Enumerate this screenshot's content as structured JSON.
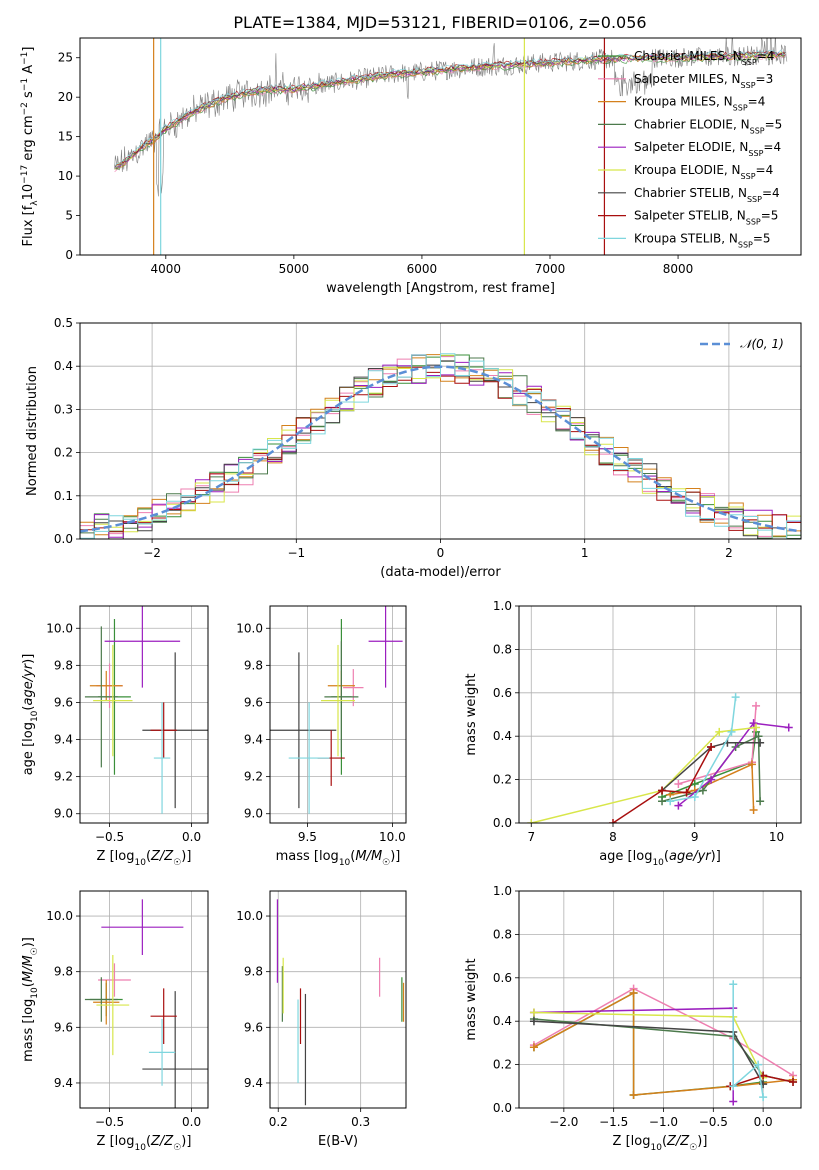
{
  "title": "PLATE=1384, MJD=53121, FIBERID=0106, z=0.056",
  "colors": {
    "Chabrier MILES": "#3a8f3a",
    "Salpeter MILES": "#ee7fb0",
    "Kroupa MILES": "#d4801c",
    "Chabrier ELODIE": "#4c7a4c",
    "Salpeter ELODIE": "#9b1fbf",
    "Kroupa ELODIE": "#d8e64a",
    "Chabrier STELIB": "#444444",
    "Salpeter STELIB": "#a80f0f",
    "Kroupa STELIB": "#7fd6de",
    "data": "#808080",
    "gaussian": "#5b8fd6"
  },
  "legend": {
    "models": [
      {
        "pre": "Chabrier MILES, N",
        "sub": "SSP",
        "post": "=4"
      },
      {
        "pre": "Salpeter MILES, N",
        "sub": "SSP",
        "post": "=3"
      },
      {
        "pre": "Kroupa MILES, N",
        "sub": "SSP",
        "post": "=4"
      },
      {
        "pre": "Chabrier ELODIE, N",
        "sub": "SSP",
        "post": "=5"
      },
      {
        "pre": "Salpeter ELODIE, N",
        "sub": "SSP",
        "post": "=4"
      },
      {
        "pre": "Kroupa ELODIE, N",
        "sub": "SSP",
        "post": "=4"
      },
      {
        "pre": "Chabrier STELIB, N",
        "sub": "SSP",
        "post": "=4"
      },
      {
        "pre": "Salpeter STELIB, N",
        "sub": "SSP",
        "post": "=5"
      },
      {
        "pre": "Kroupa STELIB, N",
        "sub": "SSP",
        "post": "=5"
      }
    ],
    "gaussian": "𝒩(0, 1)"
  },
  "chart_data": [
    {
      "id": "spectrum",
      "type": "line",
      "xlabel": "wavelength [Angstrom, rest frame]",
      "ylabel": {
        "pre": "Flux [f",
        "sub": "λ",
        "mid": "10",
        "sup1": "−17",
        "post": " erg cm",
        "sup2": "−2",
        "post2": " s",
        "sup3": "−1",
        "post3": " A",
        "sup4": "−1",
        "end": "]"
      },
      "xlim": [
        3330,
        8960
      ],
      "ylim": [
        0,
        27.5
      ],
      "xticks": [
        4000,
        5000,
        6000,
        7000,
        8000
      ],
      "yticks": [
        0,
        5,
        10,
        15,
        20,
        25
      ],
      "grid": false,
      "legend_position": "right",
      "continuum": {
        "x": [
          3600,
          3700,
          3800,
          3900,
          4000,
          4200,
          4400,
          4600,
          4800,
          5000,
          5200,
          5400,
          5600,
          5800,
          6000,
          6200,
          6400,
          6600,
          6800,
          7000,
          7200,
          7400,
          7600,
          7800,
          8000,
          8200,
          8400,
          8600,
          8800
        ],
        "y": [
          11.0,
          12.0,
          13.5,
          14.5,
          16.0,
          18.0,
          19.5,
          20.5,
          21.0,
          21.0,
          21.5,
          22.0,
          22.5,
          23.0,
          23.2,
          23.5,
          23.8,
          24.0,
          24.2,
          24.4,
          24.6,
          24.8,
          24.9,
          25.0,
          25.0,
          25.1,
          25.2,
          25.3,
          25.4
        ]
      },
      "vertical_lines": [
        {
          "series": "Kroupa MILES",
          "x": 3905
        },
        {
          "series": "Kroupa STELIB",
          "x": 3960
        },
        {
          "series": "Kroupa ELODIE",
          "x": 6800
        },
        {
          "series": "Salpeter STELIB",
          "x": 7425
        }
      ]
    },
    {
      "id": "residual-histogram",
      "type": "bar",
      "xlabel": "(data-model)/error",
      "ylabel": "Normed distribution",
      "xlim": [
        -2.5,
        2.5
      ],
      "ylim": [
        0,
        0.5
      ],
      "xticks": [
        -2,
        -1,
        0,
        1,
        2
      ],
      "yticks": [
        0.0,
        0.1,
        0.2,
        0.3,
        0.4,
        0.5
      ],
      "grid": true,
      "legend_position": "upper right",
      "bin_width": 0.1
    },
    {
      "id": "age-vs-metallicity",
      "type": "scatter",
      "xlabel": "Z [log10(Z/Z☉)]",
      "ylabel": "age  [log10(age/yr)]",
      "xlim": [
        -0.68,
        0.1
      ],
      "ylim": [
        8.95,
        10.12
      ],
      "xticks": [
        -0.5,
        0.0
      ],
      "yticks": [
        9.0,
        9.2,
        9.4,
        9.6,
        9.8,
        10.0
      ],
      "grid": true,
      "points": [
        {
          "series": "Chabrier MILES",
          "x": -0.47,
          "y": 9.63,
          "xerr": 0.1,
          "yerr": 0.42
        },
        {
          "series": "Salpeter MILES",
          "x": -0.5,
          "y": 9.69,
          "xerr": 0.08,
          "yerr": 0.12
        },
        {
          "series": "Kroupa MILES",
          "x": -0.52,
          "y": 9.69,
          "xerr": 0.1,
          "yerr": 0.08
        },
        {
          "series": "Chabrier ELODIE",
          "x": -0.55,
          "y": 9.63,
          "xerr": 0.1,
          "yerr": 0.38
        },
        {
          "series": "Salpeter ELODIE",
          "x": -0.3,
          "y": 9.93,
          "xerr": 0.23,
          "yerr": 0.25
        },
        {
          "series": "Kroupa ELODIE",
          "x": -0.48,
          "y": 9.61,
          "xerr": 0.12,
          "yerr": 0.3
        },
        {
          "series": "Chabrier STELIB",
          "x": -0.1,
          "y": 9.45,
          "xerr": 0.2,
          "yerr": 0.42
        },
        {
          "series": "Salpeter STELIB",
          "x": -0.17,
          "y": 9.45,
          "xerr": 0.08,
          "yerr": 0.15
        },
        {
          "series": "Kroupa STELIB",
          "x": -0.18,
          "y": 9.3,
          "xerr": 0.05,
          "yerr": 0.3
        }
      ]
    },
    {
      "id": "age-vs-mass",
      "type": "scatter",
      "xlabel": "mass [log10(M/M☉)]",
      "ylabel": "",
      "xlim": [
        9.28,
        10.08
      ],
      "ylim": [
        8.95,
        10.12
      ],
      "xticks": [
        9.5,
        10.0
      ],
      "yticks": [
        9.0,
        9.2,
        9.4,
        9.6,
        9.8,
        10.0
      ],
      "grid": true,
      "points": [
        {
          "series": "Chabrier MILES",
          "x": 9.7,
          "y": 9.63,
          "xerr": 0.06,
          "yerr": 0.42
        },
        {
          "series": "Salpeter MILES",
          "x": 9.77,
          "y": 9.68,
          "xerr": 0.06,
          "yerr": 0.1
        },
        {
          "series": "Kroupa MILES",
          "x": 9.7,
          "y": 9.69,
          "xerr": 0.08,
          "yerr": 0.08
        },
        {
          "series": "Chabrier ELODIE",
          "x": 9.7,
          "y": 9.63,
          "xerr": 0.1,
          "yerr": 0.3
        },
        {
          "series": "Salpeter ELODIE",
          "x": 9.96,
          "y": 9.93,
          "xerr": 0.1,
          "yerr": 0.25
        },
        {
          "series": "Kroupa ELODIE",
          "x": 9.68,
          "y": 9.61,
          "xerr": 0.1,
          "yerr": 0.3
        },
        {
          "series": "Chabrier STELIB",
          "x": 9.45,
          "y": 9.45,
          "xerr": 0.22,
          "yerr": 0.42
        },
        {
          "series": "Salpeter STELIB",
          "x": 9.64,
          "y": 9.3,
          "xerr": 0.08,
          "yerr": 0.15
        },
        {
          "series": "Kroupa STELIB",
          "x": 9.51,
          "y": 9.3,
          "xerr": 0.12,
          "yerr": 0.3
        }
      ]
    },
    {
      "id": "mass-weight-vs-age",
      "type": "line",
      "xlabel": "age  [log10(age/yr)]",
      "ylabel": "mass weight",
      "xlim": [
        6.85,
        10.3
      ],
      "ylim": [
        0,
        1
      ],
      "xticks": [
        7,
        8,
        9,
        10
      ],
      "yticks": [
        0.0,
        0.2,
        0.4,
        0.6,
        0.8,
        1.0
      ],
      "grid": true,
      "series": [
        {
          "name": "Chabrier MILES",
          "x": [
            8.6,
            9.0,
            9.7,
            9.75
          ],
          "y": [
            0.12,
            0.18,
            0.28,
            0.42
          ]
        },
        {
          "name": "Salpeter MILES",
          "x": [
            8.8,
            9.7,
            9.75
          ],
          "y": [
            0.18,
            0.28,
            0.54
          ]
        },
        {
          "name": "Kroupa MILES",
          "x": [
            8.7,
            9.0,
            9.7,
            9.72
          ],
          "y": [
            0.13,
            0.15,
            0.27,
            0.06
          ]
        },
        {
          "name": "Chabrier ELODIE",
          "x": [
            8.6,
            9.1,
            9.5,
            9.78,
            9.8
          ],
          "y": [
            0.1,
            0.15,
            0.35,
            0.4,
            0.1
          ]
        },
        {
          "name": "Salpeter ELODIE",
          "x": [
            8.8,
            9.2,
            9.72,
            10.15
          ],
          "y": [
            0.08,
            0.2,
            0.46,
            0.44
          ]
        },
        {
          "name": "Kroupa ELODIE",
          "x": [
            7.0,
            8.6,
            9.3,
            9.75
          ],
          "y": [
            0.0,
            0.15,
            0.42,
            0.44
          ]
        },
        {
          "name": "Chabrier STELIB",
          "x": [
            8.6,
            9.2,
            9.4,
            9.8
          ],
          "y": [
            0.15,
            0.35,
            0.37,
            0.37
          ]
        },
        {
          "name": "Salpeter STELIB",
          "x": [
            8.0,
            8.6,
            8.9,
            9.2
          ],
          "y": [
            0.0,
            0.15,
            0.14,
            0.35
          ]
        },
        {
          "name": "Kroupa STELIB",
          "x": [
            8.7,
            9.0,
            9.45,
            9.5
          ],
          "y": [
            0.1,
            0.12,
            0.42,
            0.58
          ]
        }
      ]
    },
    {
      "id": "mass-vs-metallicity",
      "type": "scatter",
      "xlabel": "Z [log10(Z/Z☉)]",
      "ylabel": "mass [log10(M/M☉)]",
      "xlim": [
        -0.68,
        0.1
      ],
      "ylim": [
        9.31,
        10.09
      ],
      "xticks": [
        -0.5,
        0.0
      ],
      "yticks": [
        9.4,
        9.6,
        9.8,
        10.0
      ],
      "grid": true,
      "points": [
        {
          "series": "Chabrier MILES",
          "x": -0.52,
          "y": 9.7,
          "xerr": 0.1,
          "yerr": 0.06
        },
        {
          "series": "Salpeter MILES",
          "x": -0.47,
          "y": 9.77,
          "xerr": 0.1,
          "yerr": 0.06
        },
        {
          "series": "Kroupa MILES",
          "x": -0.52,
          "y": 9.69,
          "xerr": 0.08,
          "yerr": 0.08
        },
        {
          "series": "Chabrier ELODIE",
          "x": -0.55,
          "y": 9.7,
          "xerr": 0.1,
          "yerr": 0.08
        },
        {
          "series": "Salpeter ELODIE",
          "x": -0.3,
          "y": 9.96,
          "xerr": 0.25,
          "yerr": 0.1
        },
        {
          "series": "Kroupa ELODIE",
          "x": -0.48,
          "y": 9.68,
          "xerr": 0.1,
          "yerr": 0.18
        },
        {
          "series": "Chabrier STELIB",
          "x": -0.1,
          "y": 9.45,
          "xerr": 0.2,
          "yerr": 0.28
        },
        {
          "series": "Salpeter STELIB",
          "x": -0.17,
          "y": 9.64,
          "xerr": 0.08,
          "yerr": 0.1
        },
        {
          "series": "Kroupa STELIB",
          "x": -0.18,
          "y": 9.51,
          "xerr": 0.08,
          "yerr": 0.12
        }
      ]
    },
    {
      "id": "mass-vs-extinction",
      "type": "scatter",
      "xlabel": "E(B-V)",
      "ylabel": "",
      "xlim": [
        0.19,
        0.355
      ],
      "ylim": [
        9.31,
        10.09
      ],
      "xticks": [
        0.2,
        0.3
      ],
      "yticks": [
        9.4,
        9.6,
        9.8,
        10.0
      ],
      "grid": true,
      "points": [
        {
          "series": "Chabrier MILES",
          "x": 0.35,
          "y": 9.7,
          "xerr": 0,
          "yerr": 0.08
        },
        {
          "series": "Salpeter MILES",
          "x": 0.323,
          "y": 9.78,
          "xerr": 0,
          "yerr": 0.07
        },
        {
          "series": "Kroupa MILES",
          "x": 0.352,
          "y": 9.69,
          "xerr": 0,
          "yerr": 0.07
        },
        {
          "series": "Chabrier ELODIE",
          "x": 0.205,
          "y": 9.72,
          "xerr": 0,
          "yerr": 0.1
        },
        {
          "series": "Salpeter ELODIE",
          "x": 0.199,
          "y": 9.91,
          "xerr": 0,
          "yerr": 0.15
        },
        {
          "series": "Kroupa ELODIE",
          "x": 0.206,
          "y": 9.75,
          "xerr": 0,
          "yerr": 0.1
        },
        {
          "series": "Chabrier STELIB",
          "x": 0.233,
          "y": 9.52,
          "xerr": 0,
          "yerr": 0.2
        },
        {
          "series": "Salpeter STELIB",
          "x": 0.227,
          "y": 9.64,
          "xerr": 0,
          "yerr": 0.1
        },
        {
          "series": "Kroupa STELIB",
          "x": 0.224,
          "y": 9.55,
          "xerr": 0,
          "yerr": 0.15
        }
      ]
    },
    {
      "id": "mass-weight-vs-metallicity",
      "type": "line",
      "xlabel": "Z [log10(Z/Z☉)]",
      "ylabel": "mass weight",
      "xlim": [
        -2.45,
        0.38
      ],
      "ylim": [
        0,
        1
      ],
      "xticks": [
        -2.0,
        -1.5,
        -1.0,
        -0.5,
        0.0
      ],
      "yticks": [
        0.0,
        0.2,
        0.4,
        0.6,
        0.8,
        1.0
      ],
      "grid": true,
      "series": [
        {
          "name": "Chabrier MILES",
          "x": [
            -2.3,
            -1.3,
            -1.3,
            -0.33,
            0.0
          ],
          "y": [
            0.28,
            0.53,
            0.06,
            0.1,
            0.12
          ]
        },
        {
          "name": "Salpeter MILES",
          "x": [
            -2.3,
            -1.3,
            -0.3,
            0.3
          ],
          "y": [
            0.29,
            0.55,
            0.32,
            0.15
          ]
        },
        {
          "name": "Kroupa MILES",
          "x": [
            -2.3,
            -1.3,
            -1.3,
            -0.3,
            0.3
          ],
          "y": [
            0.28,
            0.53,
            0.06,
            0.1,
            0.13
          ]
        },
        {
          "name": "Chabrier ELODIE",
          "x": [
            -2.3,
            -0.3,
            0.0,
            0.3
          ],
          "y": [
            0.41,
            0.33,
            0.15,
            0.12
          ]
        },
        {
          "name": "Salpeter ELODIE",
          "x": [
            -2.3,
            -0.3,
            -0.3
          ],
          "y": [
            0.44,
            0.46,
            0.03
          ]
        },
        {
          "name": "Kroupa ELODIE",
          "x": [
            -2.3,
            -0.3,
            0.0
          ],
          "y": [
            0.44,
            0.42,
            0.14
          ]
        },
        {
          "name": "Chabrier STELIB",
          "x": [
            -2.3,
            -0.3,
            0.0
          ],
          "y": [
            0.4,
            0.35,
            0.11
          ]
        },
        {
          "name": "Salpeter STELIB",
          "x": [
            -0.33,
            0.0,
            0.3
          ],
          "y": [
            0.1,
            0.15,
            0.12
          ]
        },
        {
          "name": "Kroupa STELIB",
          "x": [
            -0.3,
            -0.3,
            -0.05,
            0.0
          ],
          "y": [
            0.57,
            0.1,
            0.2,
            0.05
          ]
        }
      ]
    }
  ]
}
